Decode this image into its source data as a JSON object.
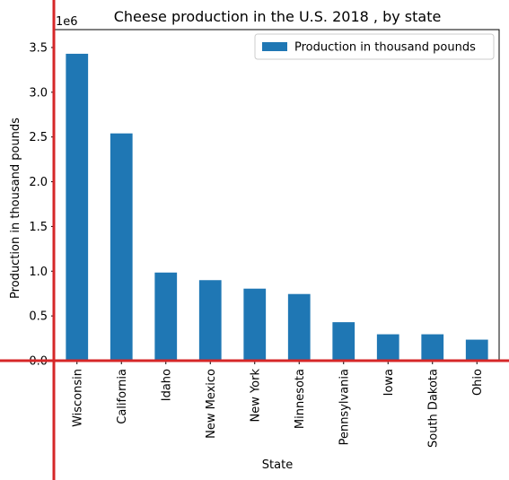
{
  "chart_data": {
    "type": "bar",
    "title": "Cheese production in the U.S. 2018 , by state",
    "xlabel": "State",
    "ylabel": "Production in thousand pounds",
    "offset_label": "1e6",
    "categories": [
      "Wisconsin",
      "California",
      "Idaho",
      "New Mexico",
      "New York",
      "Minnesota",
      "Pennsylvania",
      "Iowa",
      "South Dakota",
      "Ohio"
    ],
    "series": [
      {
        "name": "Production in thousand pounds",
        "values": [
          3430000,
          2540000,
          985000,
          900000,
          805000,
          745000,
          430000,
          295000,
          295000,
          235000
        ]
      }
    ],
    "ylim": [
      0,
      3.7
    ],
    "yticks": [
      "0.0",
      "0.5",
      "1.0",
      "1.5",
      "2.0",
      "2.5",
      "3.0",
      "3.5"
    ],
    "ytick_values": [
      0,
      0.5,
      1.0,
      1.5,
      2.0,
      2.5,
      3.0,
      3.5
    ],
    "y_scale": 1000000,
    "legend_position": "top-right",
    "grid": false,
    "colors": {
      "bar": "#1f77b4",
      "axis_highlight": "#d62728",
      "frame": "#000000"
    }
  }
}
